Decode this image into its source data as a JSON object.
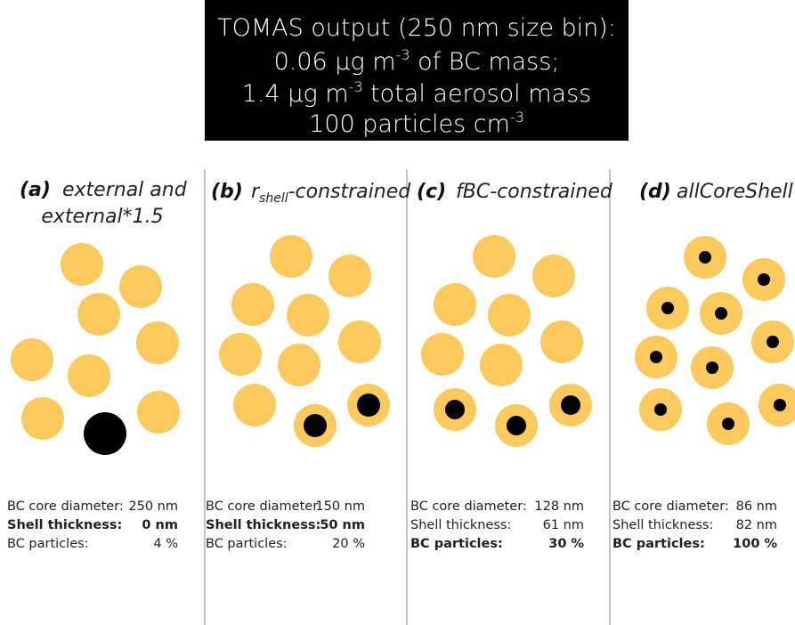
{
  "header": {
    "lines": [
      [
        "TOMAS output (250 nm size bin):"
      ],
      [
        "0.06 μg m",
        "-3",
        " of BC mass;"
      ],
      [
        "1.4 μg m",
        "-3",
        " total aerosol mass"
      ],
      [
        "100 particles cm",
        "-3"
      ]
    ]
  },
  "panels": [
    {
      "label": "(a)",
      "title": [
        "external and",
        "external*1.5"
      ],
      "rows": [
        {
          "label": "BC core diameter:",
          "value": "250 nm",
          "bold": false
        },
        {
          "label": "Shell thickness:",
          "value": "0 nm",
          "bold": true
        },
        {
          "label": "BC particles:",
          "value": "4 %",
          "bold": false
        }
      ]
    },
    {
      "label": "(b)",
      "title": [
        "r",
        "shell",
        "-constrained"
      ],
      "rows": [
        {
          "label": "BC core diameter:",
          "value": "150 nm",
          "bold": false
        },
        {
          "label": "Shell thickness:",
          "value": "50 nm",
          "bold": true
        },
        {
          "label": "BC particles:",
          "value": "20 %",
          "bold": false
        }
      ]
    },
    {
      "label": "(c)",
      "title": [
        "fBC-constrained"
      ],
      "rows": [
        {
          "label": "BC core diameter:",
          "value": "128 nm",
          "bold": false
        },
        {
          "label": "Shell thickness:",
          "value": "61 nm",
          "bold": false
        },
        {
          "label": "BC particles:",
          "value": "30 %",
          "bold": true
        }
      ]
    },
    {
      "label": "(d)",
      "title": [
        "allCoreShell"
      ],
      "rows": [
        {
          "label": "BC core diameter:",
          "value": "86 nm",
          "bold": false
        },
        {
          "label": "Shell thickness:",
          "value": "82 nm",
          "bold": false
        },
        {
          "label": "BC particles:",
          "value": "100 %",
          "bold": true
        }
      ]
    }
  ]
}
